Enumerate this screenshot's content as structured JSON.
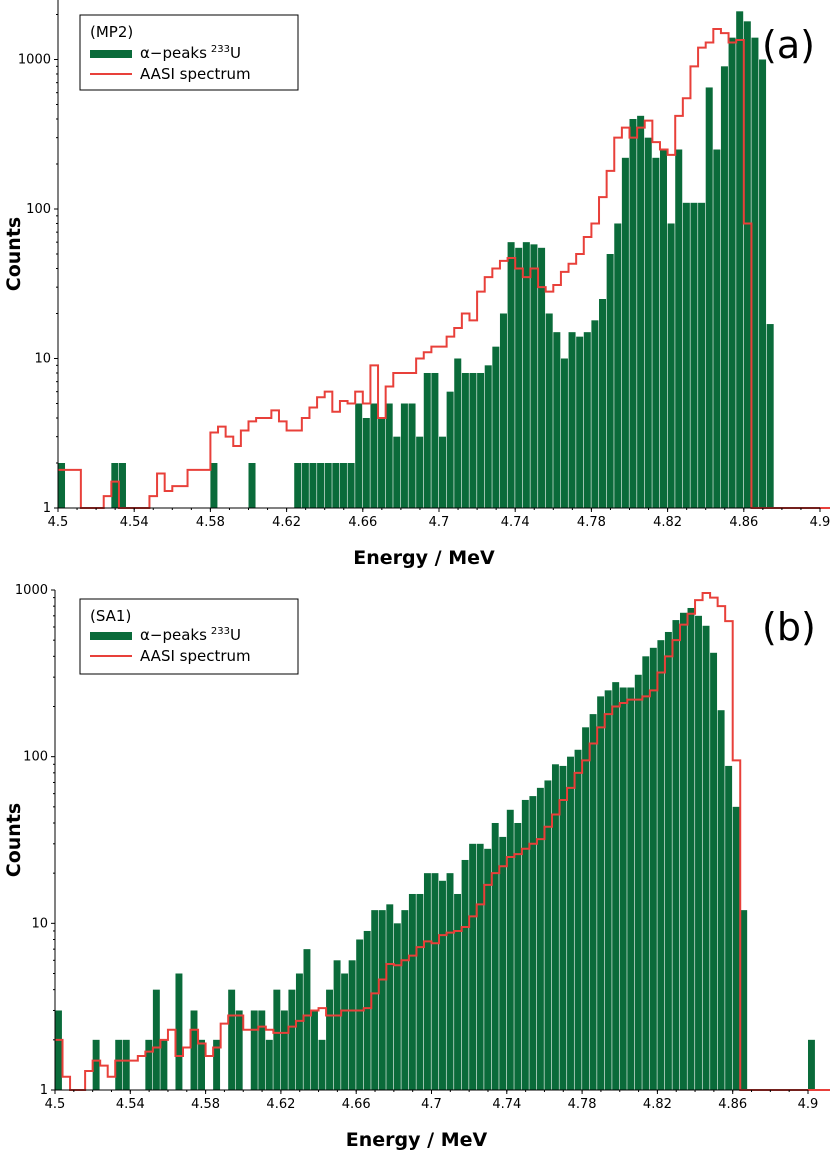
{
  "chart_data": [
    {
      "panel_label": "(a)",
      "type": "bar",
      "xlabel": "Energy / MeV",
      "ylabel": "Counts",
      "y_scale": "log",
      "xlim": [
        4.5,
        4.9
      ],
      "ylim": [
        1,
        2500
      ],
      "x_ticks": [
        "4.5",
        "4.54",
        "4.58",
        "4.62",
        "4.66",
        "4.7",
        "4.74",
        "4.78",
        "4.82",
        "4.86",
        "4.9"
      ],
      "y_ticks": [
        "1",
        "10",
        "100",
        "1000"
      ],
      "legend": {
        "title": "(MP2)",
        "placement": "top-left",
        "items": [
          {
            "label": "α−peaks",
            "sup": "233",
            "suffix": "U",
            "kind": "bar",
            "color": "#0a6b3a"
          },
          {
            "label": "AASI spectrum",
            "kind": "line",
            "color": "#e8403a"
          }
        ]
      },
      "bin_start": 4.5,
      "bin_width": 0.004,
      "series": [
        {
          "name": "α−peaks 233U",
          "kind": "bars",
          "color": "#0a6b3a",
          "values": [
            2,
            0,
            0,
            0,
            0,
            0,
            0,
            2,
            2,
            0,
            0,
            0,
            0,
            0,
            0,
            0,
            0,
            0,
            0,
            0,
            2,
            0,
            0,
            0,
            0,
            2,
            0,
            0,
            0,
            0,
            0,
            2,
            2,
            2,
            2,
            2,
            2,
            2,
            2,
            5,
            4,
            5,
            4,
            5,
            3,
            5,
            5,
            3,
            8,
            8,
            3,
            6,
            10,
            8,
            8,
            8,
            9,
            12,
            20,
            60,
            55,
            60,
            58,
            55,
            20,
            15,
            10,
            15,
            14,
            15,
            18,
            25,
            50,
            80,
            220,
            400,
            420,
            300,
            220,
            250,
            80,
            250,
            110,
            110,
            110,
            650,
            250,
            900,
            1400,
            2100,
            1800,
            1400,
            1000,
            17,
            0
          ]
        },
        {
          "name": "AASI spectrum",
          "kind": "step",
          "color": "#e8403a",
          "values": [
            1.8,
            1.8,
            1.8,
            1,
            1,
            1,
            1.2,
            1.5,
            1,
            1,
            1,
            1,
            1.2,
            1.7,
            1.3,
            1.4,
            1.4,
            1.8,
            1.8,
            1.8,
            3.2,
            3.5,
            3,
            2.6,
            3.3,
            3.8,
            4,
            4,
            4.5,
            3.8,
            3.3,
            3.3,
            4,
            4.7,
            5.5,
            6,
            4.4,
            5.2,
            5,
            6,
            5,
            9,
            4,
            6.5,
            8,
            8,
            8,
            10,
            11,
            12,
            12,
            14,
            16,
            20,
            18,
            28,
            35,
            40,
            45,
            47,
            40,
            35,
            40,
            30,
            28,
            31,
            38,
            43,
            50,
            65,
            80,
            120,
            180,
            300,
            350,
            300,
            350,
            390,
            280,
            250,
            230,
            420,
            550,
            900,
            1200,
            1300,
            1600,
            1500,
            1300,
            1350,
            80,
            0,
            0,
            1,
            1,
            1,
            1,
            1,
            1,
            1,
            1,
            1,
            1,
            1,
            1,
            1
          ]
        }
      ]
    },
    {
      "panel_label": "(b)",
      "type": "bar",
      "xlabel": "Energy / MeV",
      "ylabel": "Counts",
      "y_scale": "log",
      "xlim": [
        4.5,
        4.9
      ],
      "ylim": [
        1,
        1000
      ],
      "x_ticks": [
        "4.5",
        "4.54",
        "4.58",
        "4.62",
        "4.66",
        "4.7",
        "4.74",
        "4.78",
        "4.82",
        "4.86",
        "4.9"
      ],
      "y_ticks": [
        "1",
        "10",
        "100",
        "1000"
      ],
      "legend": {
        "title": "(SA1)",
        "placement": "top-left",
        "items": [
          {
            "label": "α−peaks",
            "sup": "233",
            "suffix": "U",
            "kind": "bar",
            "color": "#0a6b3a"
          },
          {
            "label": "AASI spectrum",
            "kind": "line",
            "color": "#e8403a"
          }
        ]
      },
      "bin_start": 4.5,
      "bin_width": 0.004,
      "series": [
        {
          "name": "α−peaks 233U",
          "kind": "bars",
          "color": "#0a6b3a",
          "values": [
            3,
            0,
            0,
            0,
            0,
            2,
            0,
            0,
            2,
            2,
            0,
            1,
            2,
            4,
            2,
            0,
            5,
            1,
            3,
            2,
            0,
            2,
            1,
            4,
            3,
            1,
            3,
            3,
            2,
            4,
            3,
            4,
            5,
            7,
            3,
            2,
            4,
            6,
            5,
            6,
            8,
            9,
            12,
            12,
            13,
            10,
            12,
            15,
            15,
            20,
            20,
            18,
            20,
            15,
            24,
            30,
            30,
            28,
            40,
            33,
            48,
            40,
            55,
            58,
            65,
            72,
            90,
            88,
            100,
            110,
            150,
            180,
            230,
            250,
            280,
            260,
            260,
            310,
            400,
            450,
            500,
            560,
            660,
            730,
            780,
            700,
            610,
            420,
            190,
            88,
            50,
            12,
            0,
            0,
            0,
            0,
            0,
            0,
            0,
            0,
            2,
            0,
            0
          ]
        },
        {
          "name": "AASI spectrum",
          "kind": "step",
          "color": "#e8403a",
          "values": [
            2,
            1.2,
            1,
            1,
            1.3,
            1.5,
            1.4,
            1.2,
            1.5,
            1.5,
            1.5,
            1.6,
            1.7,
            1.8,
            2,
            2.3,
            1.6,
            1.8,
            2.3,
            1.9,
            1.6,
            1.8,
            2.5,
            2.8,
            2.8,
            2.3,
            2.3,
            2.4,
            2.3,
            2.2,
            2.2,
            2.4,
            2.6,
            2.8,
            3,
            3.1,
            2.8,
            2.8,
            3,
            3,
            3,
            3.1,
            3.8,
            4.6,
            5.7,
            5.6,
            6,
            6.4,
            7.2,
            7.8,
            7.6,
            8.5,
            8.8,
            9,
            9.5,
            11,
            13,
            17,
            20,
            22,
            25,
            26,
            28,
            30,
            32,
            38,
            45,
            55,
            65,
            80,
            95,
            120,
            150,
            180,
            200,
            210,
            220,
            220,
            230,
            250,
            320,
            400,
            500,
            620,
            720,
            870,
            960,
            900,
            800,
            650,
            95,
            1,
            1,
            1,
            1,
            1,
            1,
            1,
            1,
            1,
            1,
            1,
            1,
            1
          ]
        }
      ]
    }
  ]
}
